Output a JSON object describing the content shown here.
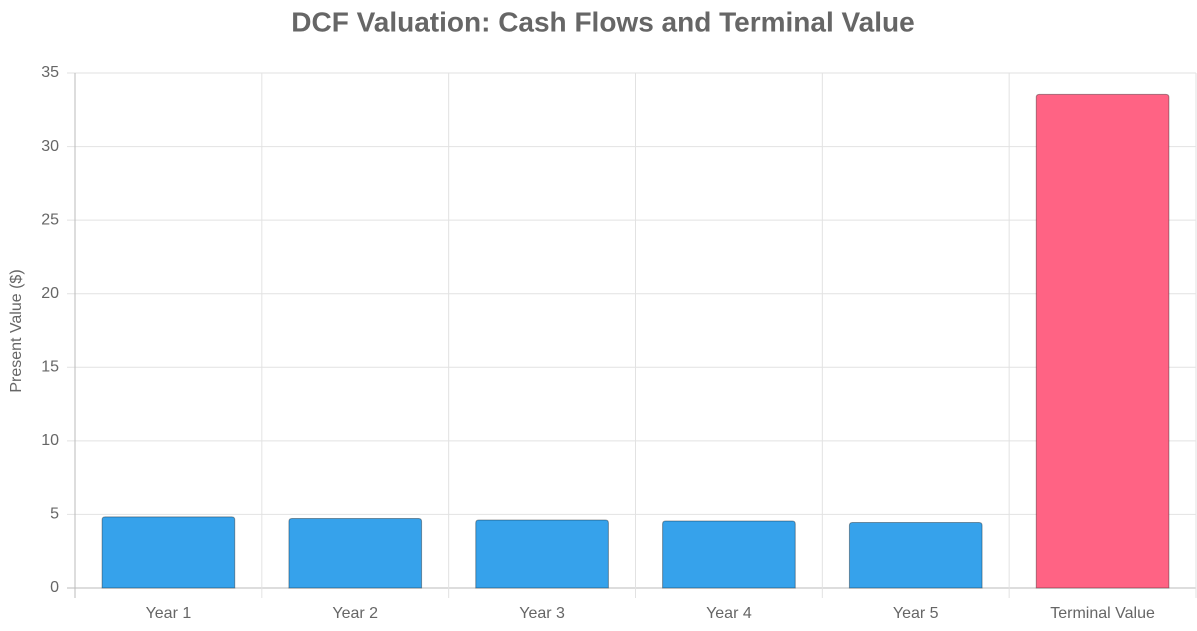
{
  "chart_data": {
    "type": "bar",
    "title": "DCF Valuation: Cash Flows and Terminal Value",
    "y_label": "Present Value ($)",
    "categories": [
      "Year 1",
      "Year 2",
      "Year 3",
      "Year 4",
      "Year 5",
      "Terminal Value"
    ],
    "values": [
      4.83,
      4.72,
      4.62,
      4.55,
      4.45,
      33.55
    ],
    "colors": [
      "#36a2eb",
      "#36a2eb",
      "#36a2eb",
      "#36a2eb",
      "#36a2eb",
      "#ff6384"
    ],
    "ylim": [
      0,
      35
    ],
    "yticks": [
      0,
      5,
      10,
      15,
      20,
      25,
      30,
      35
    ],
    "grid": true
  }
}
